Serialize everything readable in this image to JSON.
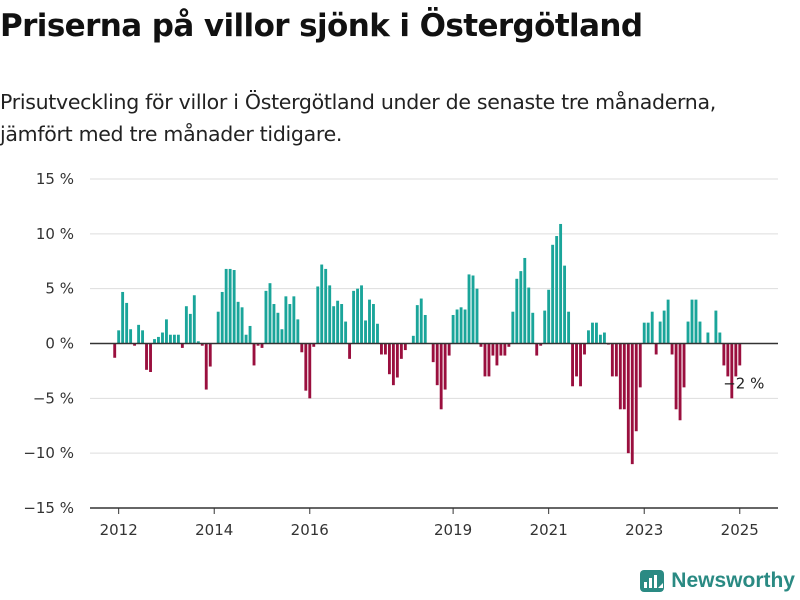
{
  "title": "Priserna på villor sjönk i Östergötland",
  "subtitle": "Prisutveckling för villor i Östergötland under de senaste tre månaderna, jämfört med tre månader tidigare.",
  "brand": "Newsworthy",
  "colors": {
    "positive": "#1aa59a",
    "negative": "#9a0f3e",
    "grid": "#dddddd",
    "axis": "#333333",
    "brand": "#2a8a83"
  },
  "chart_data": {
    "type": "bar",
    "yticks": [
      15,
      10,
      5,
      0,
      -5,
      -10,
      -15
    ],
    "ytick_labels": [
      "15 %",
      "10 %",
      "5 %",
      "0 %",
      "−5 %",
      "−10 %",
      "−15 %"
    ],
    "ylim": [
      -15,
      15
    ],
    "xlim": [
      2011.4,
      2025.8
    ],
    "xticks": [
      2012,
      2014,
      2016,
      2019,
      2021,
      2023,
      2025
    ],
    "xtick_labels": [
      "2012",
      "2014",
      "2016",
      "2019",
      "2021",
      "2023",
      "2025"
    ],
    "annotation": {
      "text": "−2 %",
      "x": 2025.0,
      "y": -2
    },
    "x": [
      2011.917,
      2012.0,
      2012.083,
      2012.167,
      2012.25,
      2012.333,
      2012.417,
      2012.5,
      2012.583,
      2012.667,
      2012.75,
      2012.833,
      2012.917,
      2013.0,
      2013.083,
      2013.167,
      2013.25,
      2013.333,
      2013.417,
      2013.5,
      2013.583,
      2013.667,
      2013.75,
      2013.833,
      2013.917,
      2014.0,
      2014.083,
      2014.167,
      2014.25,
      2014.333,
      2014.417,
      2014.5,
      2014.583,
      2014.667,
      2014.75,
      2014.833,
      2014.917,
      2015.0,
      2015.083,
      2015.167,
      2015.25,
      2015.333,
      2015.417,
      2015.5,
      2015.583,
      2015.667,
      2015.75,
      2015.833,
      2015.917,
      2016.0,
      2016.083,
      2016.167,
      2016.25,
      2016.333,
      2016.417,
      2016.5,
      2016.583,
      2016.667,
      2016.75,
      2016.833,
      2016.917,
      2017.0,
      2017.083,
      2017.167,
      2017.25,
      2017.333,
      2017.417,
      2017.5,
      2017.583,
      2017.667,
      2017.75,
      2017.833,
      2017.917,
      2018.0,
      2018.083,
      2018.167,
      2018.25,
      2018.333,
      2018.417,
      2018.5,
      2018.583,
      2018.667,
      2018.75,
      2018.833,
      2018.917,
      2019.0,
      2019.083,
      2019.167,
      2019.25,
      2019.333,
      2019.417,
      2019.5,
      2019.583,
      2019.667,
      2019.75,
      2019.833,
      2019.917,
      2020.0,
      2020.083,
      2020.167,
      2020.25,
      2020.333,
      2020.417,
      2020.5,
      2020.583,
      2020.667,
      2020.75,
      2020.833,
      2020.917,
      2021.0,
      2021.083,
      2021.167,
      2021.25,
      2021.333,
      2021.417,
      2021.5,
      2021.583,
      2021.667,
      2021.75,
      2021.833,
      2021.917,
      2022.0,
      2022.083,
      2022.167,
      2022.25,
      2022.333,
      2022.417,
      2022.5,
      2022.583,
      2022.667,
      2022.75,
      2022.833,
      2022.917,
      2023.0,
      2023.083,
      2023.167,
      2023.25,
      2023.333,
      2023.417,
      2023.5,
      2023.583,
      2023.667,
      2023.75,
      2023.833,
      2023.917,
      2024.0,
      2024.083,
      2024.167,
      2024.25,
      2024.333,
      2024.417,
      2024.5,
      2024.583,
      2024.667,
      2024.75,
      2024.833,
      2024.917,
      2025.0,
      2025.083,
      2025.167
    ],
    "values": [
      -1.3,
      1.2,
      4.7,
      3.7,
      1.3,
      -0.2,
      1.7,
      1.2,
      -2.4,
      -2.6,
      0.4,
      0.6,
      1.0,
      2.2,
      0.8,
      0.8,
      0.8,
      -0.4,
      3.4,
      2.7,
      4.4,
      0.2,
      -0.2,
      -4.2,
      -2.1,
      0.0,
      2.9,
      4.7,
      6.8,
      6.8,
      6.7,
      3.8,
      3.3,
      0.8,
      1.6,
      -2.0,
      -0.2,
      -0.4,
      4.8,
      5.5,
      3.6,
      2.8,
      1.3,
      4.3,
      3.6,
      4.3,
      2.2,
      -0.8,
      -4.3,
      -5.0,
      -0.3,
      5.2,
      7.2,
      6.8,
      5.3,
      3.4,
      3.9,
      3.6,
      2.0,
      -1.4,
      4.8,
      5.0,
      5.3,
      2.1,
      4.0,
      3.6,
      1.8,
      -1.0,
      -1.0,
      -2.8,
      -3.8,
      -3.1,
      -1.4,
      -0.6,
      0.0,
      0.7,
      3.5,
      4.1,
      2.6,
      0.0,
      -1.7,
      -3.8,
      -6.0,
      -4.2,
      -1.1,
      2.6,
      3.1,
      3.3,
      3.1,
      6.3,
      6.2,
      5.0,
      -0.3,
      -3.0,
      -3.0,
      -1.1,
      -2.0,
      -1.1,
      -1.1,
      -0.3,
      2.9,
      5.9,
      6.6,
      7.8,
      5.1,
      2.8,
      -1.1,
      -0.2,
      3.0,
      4.9,
      9.0,
      9.8,
      10.9,
      7.1,
      2.9,
      -3.9,
      -3.0,
      -3.9,
      -1.0,
      1.2,
      1.9,
      1.9,
      0.8,
      1.0,
      -0.1,
      -3.0,
      -3.0,
      -6.0,
      -6.0,
      -10.0,
      -11.0,
      -8.0,
      -4.0,
      1.9,
      1.9,
      2.9,
      -1.0,
      2.0,
      3.0,
      4.0,
      -1.0,
      -6.0,
      -7.0,
      -4.0,
      2.0,
      4.0,
      4.0,
      2.0,
      0.0,
      1.0,
      0.0,
      3.0,
      1.0,
      -2.0,
      -3.0,
      -5.0,
      -3.0,
      -2.0,
      0.0,
      0.0
    ]
  }
}
